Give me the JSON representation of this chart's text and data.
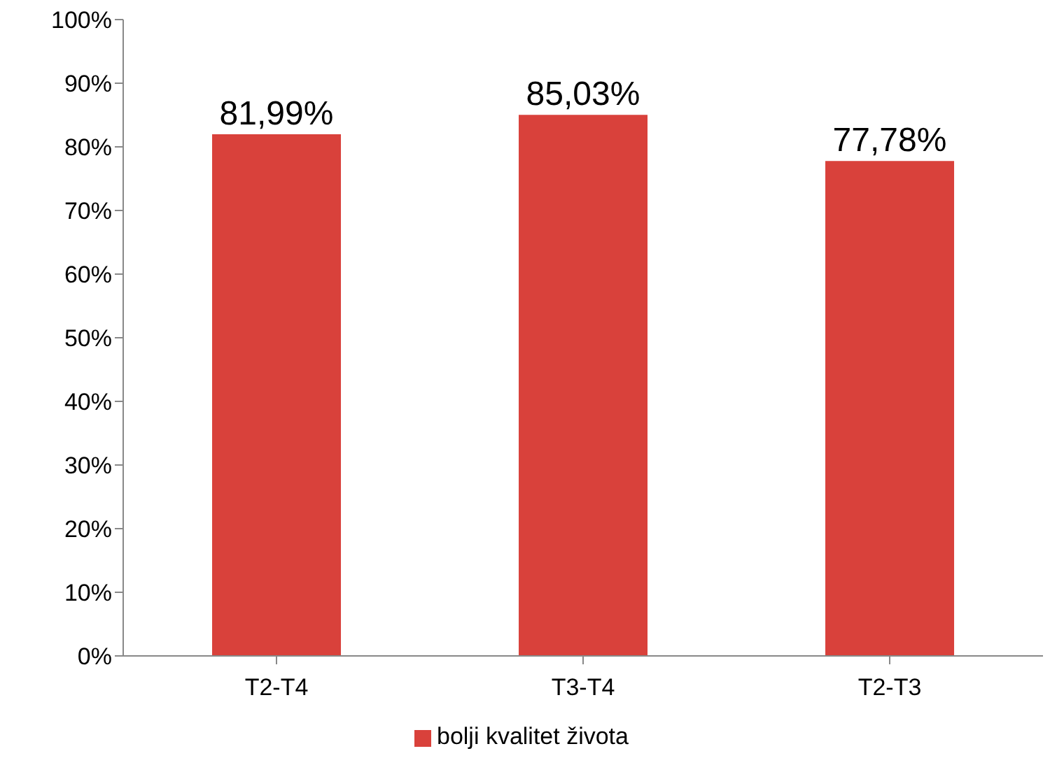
{
  "chart_data": {
    "type": "bar",
    "categories": [
      "T2-T4",
      "T3-T4",
      "T2-T3"
    ],
    "series": [
      {
        "name": "bolji kvalitet života",
        "color": "#d9413b",
        "values": [
          81.99,
          85.03,
          77.78
        ],
        "value_labels": [
          "81,99%",
          "85,03%",
          "77,78%"
        ]
      }
    ],
    "ylim": [
      0,
      100
    ],
    "yticks": [
      {
        "value": 0,
        "label": "0%"
      },
      {
        "value": 10,
        "label": "10%"
      },
      {
        "value": 20,
        "label": "20%"
      },
      {
        "value": 30,
        "label": "30%"
      },
      {
        "value": 40,
        "label": "40%"
      },
      {
        "value": 50,
        "label": "50%"
      },
      {
        "value": 60,
        "label": "60%"
      },
      {
        "value": 70,
        "label": "70%"
      },
      {
        "value": 80,
        "label": "80%"
      },
      {
        "value": 90,
        "label": "90%"
      },
      {
        "value": 100,
        "label": "100%"
      }
    ],
    "grid": false,
    "legend": "bottom"
  }
}
